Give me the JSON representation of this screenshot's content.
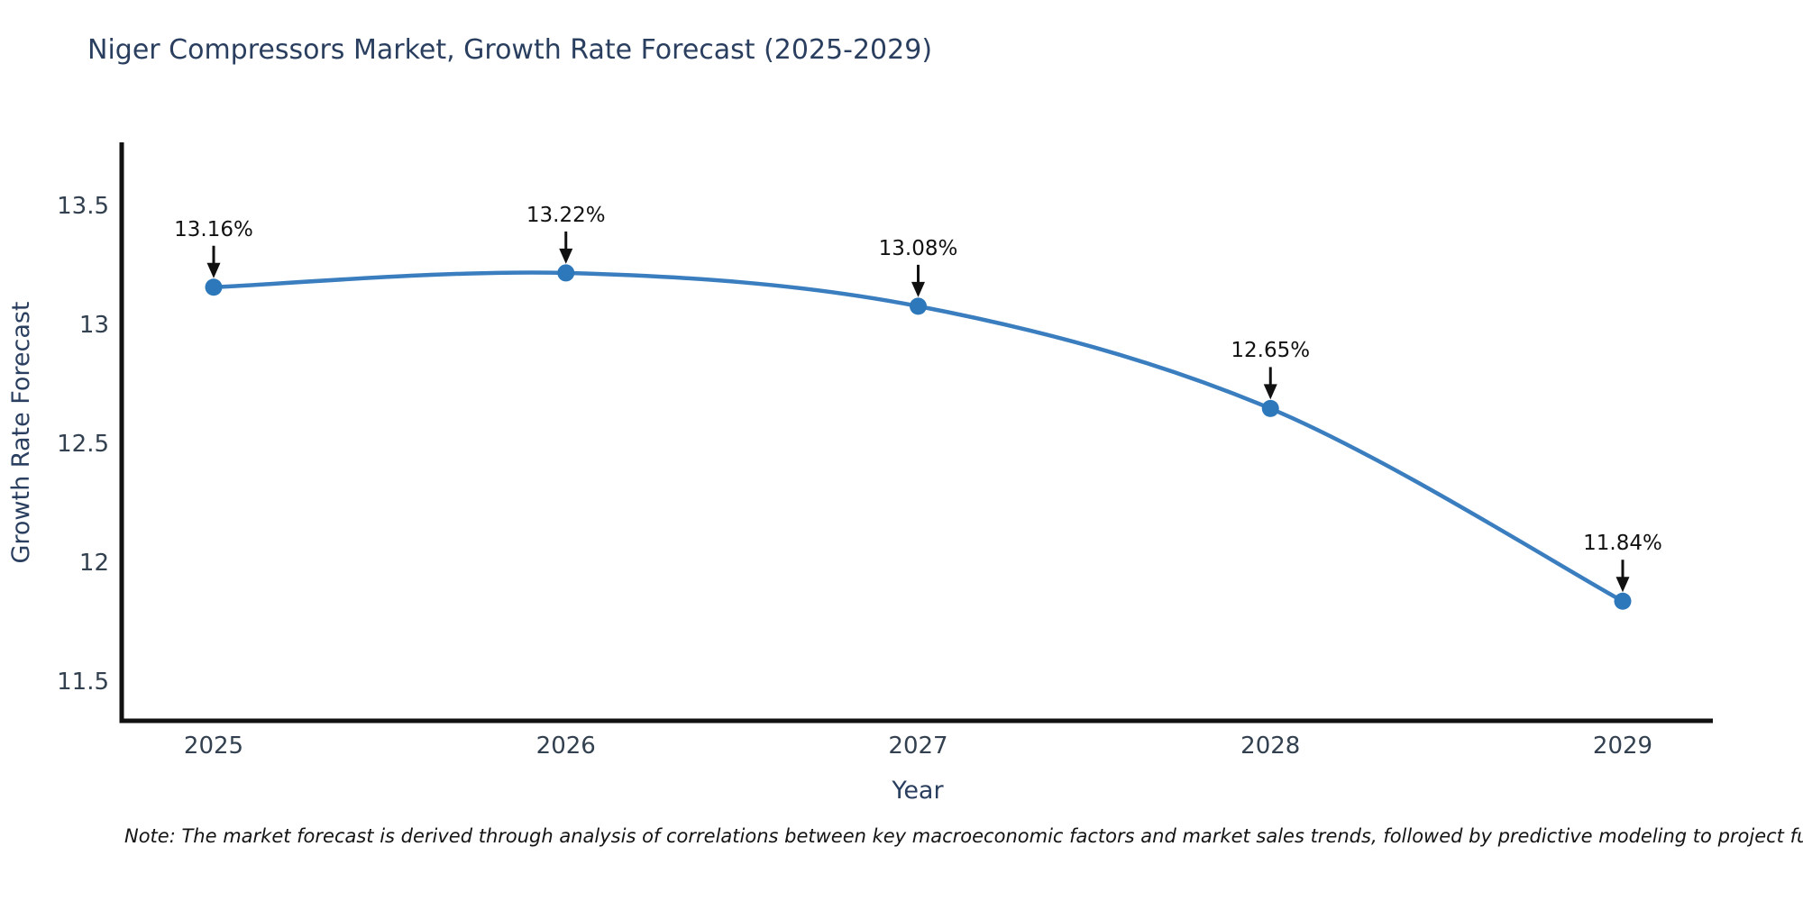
{
  "title": "Niger Compressors Market, Growth Rate Forecast (2025-2029)",
  "note": "Note: The market forecast is derived through analysis of correlations between key macroeconomic factors and market sales trends, followed by predictive modeling to project future sales.",
  "chart_data": {
    "type": "line",
    "title": "Niger Compressors Market, Growth Rate Forecast (2025-2029)",
    "xlabel": "Year",
    "ylabel": "Growth Rate Forecast",
    "categories": [
      "2025",
      "2026",
      "2027",
      "2028",
      "2029"
    ],
    "values": [
      13.16,
      13.22,
      13.08,
      12.65,
      11.84
    ],
    "point_labels": [
      "13.16%",
      "13.22%",
      "13.08%",
      "12.65%",
      "11.84%"
    ],
    "y_ticks": [
      11.5,
      12,
      12.5,
      13,
      13.5
    ],
    "ylim": [
      11.34,
      13.76
    ],
    "grid": false,
    "legend": "none",
    "smooth": true,
    "line_color": "#3a7ebf",
    "marker_color": "#2d78bb",
    "annotation_color": "#111111",
    "axis_color": "#111111"
  }
}
